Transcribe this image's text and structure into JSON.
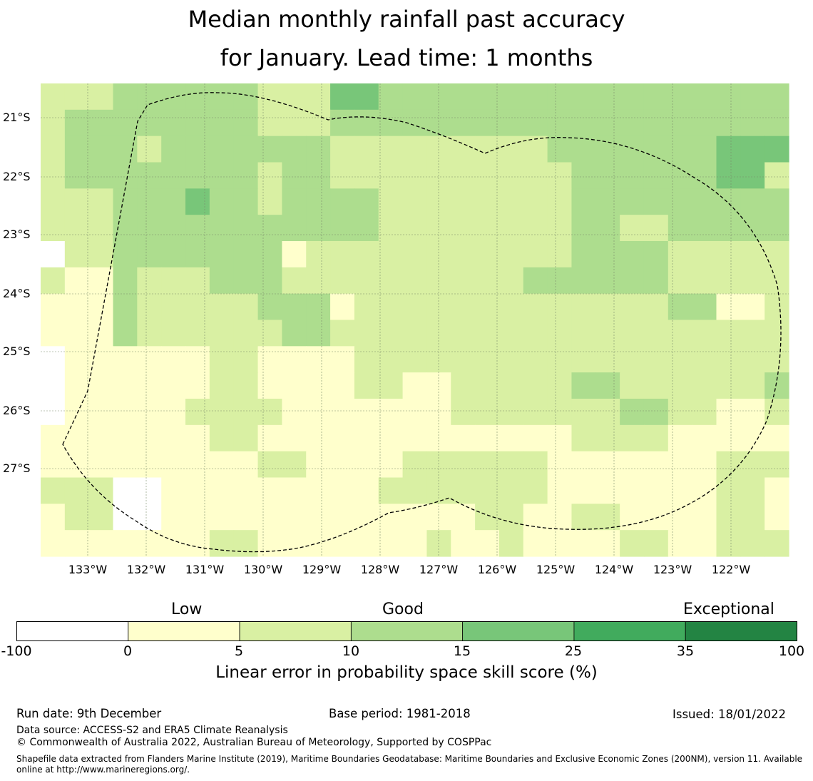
{
  "title": {
    "line1": "Median monthly rainfall past accuracy",
    "line2": "for January. Lead time: 1 months"
  },
  "map": {
    "lon_labels": [
      "133°W",
      "132°W",
      "131°W",
      "130°W",
      "129°W",
      "128°W",
      "127°W",
      "126°W",
      "125°W",
      "124°W",
      "123°W",
      "122°W"
    ],
    "lat_labels": [
      "21°S",
      "22°S",
      "23°S",
      "24°S",
      "25°S",
      "26°S",
      "27°S"
    ],
    "grid_levels": [
      [
        2,
        2,
        2,
        3,
        3,
        3,
        3,
        3,
        3,
        2,
        2,
        2,
        4,
        4,
        3,
        3,
        3,
        3,
        3,
        3,
        3,
        3,
        3,
        3,
        3,
        3,
        3,
        3,
        3,
        3,
        3
      ],
      [
        2,
        3,
        3,
        3,
        3,
        3,
        3,
        3,
        3,
        2,
        2,
        2,
        3,
        3,
        3,
        3,
        3,
        3,
        3,
        3,
        3,
        3,
        3,
        3,
        3,
        3,
        3,
        3,
        3,
        3,
        3
      ],
      [
        2,
        3,
        3,
        3,
        2,
        3,
        3,
        3,
        3,
        3,
        3,
        3,
        2,
        2,
        2,
        2,
        2,
        2,
        2,
        2,
        2,
        3,
        3,
        3,
        3,
        3,
        3,
        3,
        4,
        4,
        4
      ],
      [
        2,
        3,
        3,
        3,
        3,
        3,
        3,
        3,
        3,
        2,
        3,
        3,
        2,
        2,
        2,
        2,
        2,
        2,
        2,
        2,
        2,
        2,
        3,
        3,
        3,
        3,
        3,
        3,
        4,
        4,
        2
      ],
      [
        2,
        2,
        2,
        3,
        3,
        3,
        4,
        3,
        3,
        2,
        3,
        3,
        3,
        3,
        2,
        2,
        2,
        2,
        2,
        2,
        2,
        2,
        3,
        3,
        3,
        3,
        3,
        3,
        3,
        3,
        3
      ],
      [
        2,
        2,
        2,
        3,
        3,
        3,
        3,
        3,
        3,
        3,
        3,
        3,
        3,
        3,
        2,
        2,
        2,
        2,
        2,
        2,
        2,
        2,
        3,
        3,
        2,
        2,
        3,
        3,
        3,
        3,
        3
      ],
      [
        0,
        2,
        2,
        3,
        3,
        3,
        3,
        3,
        3,
        3,
        1,
        2,
        2,
        2,
        2,
        2,
        2,
        2,
        2,
        2,
        2,
        2,
        3,
        3,
        3,
        3,
        2,
        2,
        2,
        2,
        2
      ],
      [
        2,
        1,
        1,
        3,
        2,
        2,
        2,
        3,
        3,
        3,
        2,
        2,
        2,
        2,
        2,
        2,
        2,
        2,
        2,
        2,
        3,
        3,
        3,
        3,
        3,
        3,
        2,
        2,
        2,
        2,
        2
      ],
      [
        1,
        1,
        1,
        3,
        2,
        2,
        2,
        2,
        2,
        3,
        3,
        3,
        1,
        2,
        2,
        2,
        2,
        2,
        2,
        2,
        2,
        2,
        2,
        2,
        2,
        2,
        3,
        3,
        1,
        1,
        2
      ],
      [
        1,
        1,
        1,
        3,
        2,
        2,
        2,
        2,
        2,
        2,
        3,
        3,
        2,
        2,
        2,
        2,
        2,
        2,
        2,
        2,
        2,
        2,
        2,
        2,
        2,
        2,
        2,
        2,
        2,
        2,
        2
      ],
      [
        0,
        1,
        1,
        1,
        1,
        1,
        1,
        2,
        2,
        1,
        1,
        1,
        1,
        2,
        2,
        2,
        2,
        2,
        2,
        2,
        2,
        2,
        2,
        2,
        2,
        2,
        2,
        2,
        2,
        2,
        2
      ],
      [
        0,
        1,
        1,
        1,
        1,
        1,
        1,
        2,
        2,
        1,
        1,
        1,
        1,
        2,
        2,
        1,
        1,
        2,
        2,
        2,
        2,
        2,
        3,
        3,
        2,
        2,
        2,
        2,
        2,
        2,
        3
      ],
      [
        0,
        1,
        1,
        1,
        1,
        1,
        2,
        2,
        2,
        2,
        1,
        1,
        1,
        1,
        1,
        1,
        1,
        2,
        2,
        2,
        2,
        2,
        2,
        2,
        3,
        3,
        2,
        2,
        1,
        1,
        2
      ],
      [
        1,
        1,
        1,
        1,
        1,
        1,
        1,
        2,
        2,
        1,
        1,
        1,
        1,
        1,
        1,
        1,
        1,
        1,
        1,
        1,
        1,
        1,
        2,
        2,
        2,
        2,
        1,
        1,
        1,
        1,
        1
      ],
      [
        1,
        1,
        1,
        1,
        1,
        1,
        1,
        1,
        1,
        2,
        2,
        1,
        1,
        1,
        1,
        2,
        2,
        2,
        2,
        2,
        2,
        1,
        1,
        1,
        1,
        1,
        1,
        1,
        2,
        2,
        2
      ],
      [
        2,
        2,
        2,
        0,
        0,
        1,
        1,
        1,
        1,
        1,
        1,
        1,
        1,
        1,
        2,
        2,
        2,
        2,
        2,
        2,
        2,
        1,
        1,
        1,
        1,
        1,
        1,
        1,
        2,
        2,
        1
      ],
      [
        1,
        2,
        2,
        0,
        0,
        1,
        1,
        1,
        1,
        1,
        1,
        1,
        1,
        1,
        1,
        1,
        1,
        1,
        2,
        2,
        1,
        1,
        2,
        2,
        1,
        1,
        1,
        1,
        2,
        2,
        1
      ],
      [
        1,
        1,
        1,
        1,
        1,
        1,
        1,
        2,
        2,
        1,
        1,
        1,
        1,
        1,
        1,
        1,
        2,
        1,
        1,
        2,
        1,
        1,
        1,
        1,
        2,
        2,
        1,
        1,
        2,
        2,
        2
      ]
    ]
  },
  "colorbar": {
    "category_labels": [
      "Low",
      "Good",
      "Exceptional"
    ],
    "ticks": [
      "-100",
      "0",
      "5",
      "10",
      "15",
      "25",
      "35",
      "100"
    ],
    "colors": [
      "#ffffff",
      "#ffffcc",
      "#d9f0a3",
      "#addd8e",
      "#78c679",
      "#41ab5d",
      "#238443"
    ],
    "title": "Linear error in probability space skill score (%)"
  },
  "footer": {
    "run_date": "Run date: 9th December",
    "base_period": "Base period: 1981-2018",
    "issued": "Issued: 18/01/2022",
    "data_source": "Data source: ACCESS-S2 and ERA5 Climate Reanalysis",
    "copyright": "© Commonwealth of Australia 2022, Australian Bureau of Meteorology, Supported by COSPPac",
    "shapefile_line1": "Shapefile data extracted from Flanders Marine Institute (2019), Maritime Boundaries Geodatabase: Maritime Boundaries and Exclusive Economic Zones (200NM), version 11. Available",
    "shapefile_line2": "online at http://www.marineregions.org/."
  }
}
